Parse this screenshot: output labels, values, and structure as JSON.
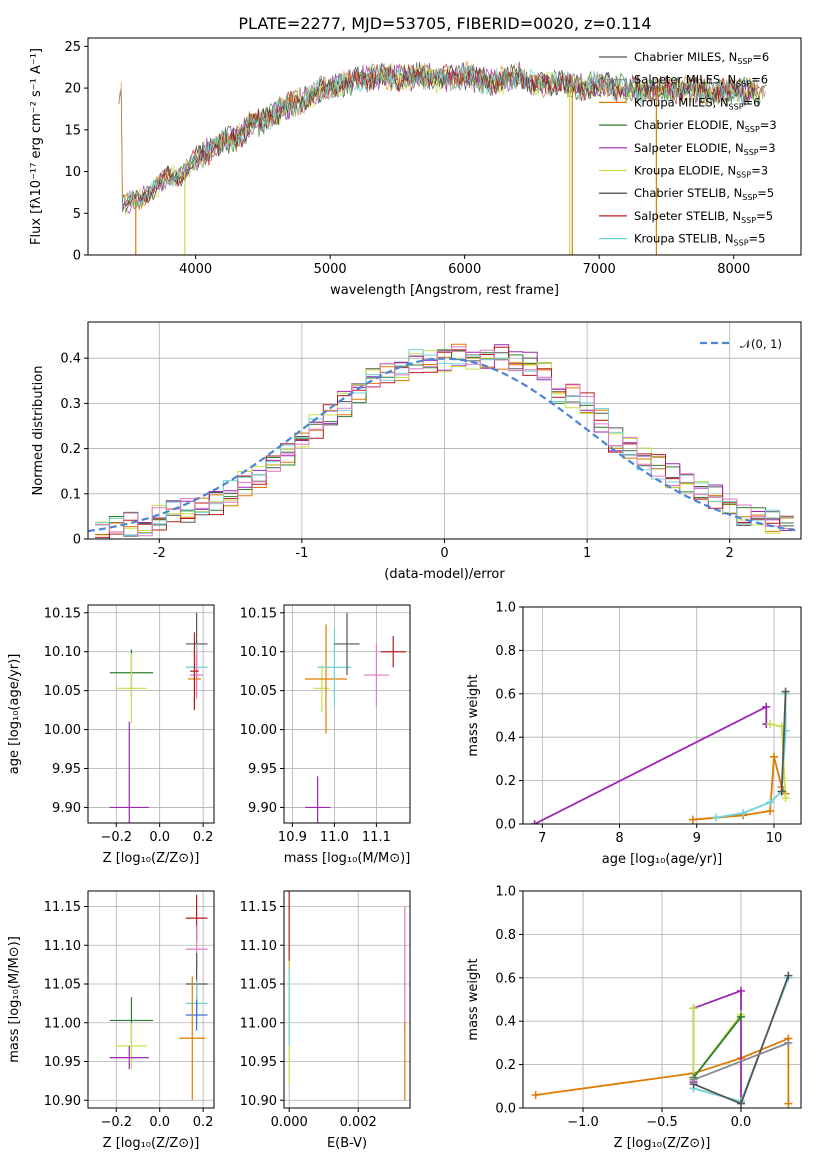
{
  "figure_title": "PLATE=2277, MJD=53705, FIBERID=0020, z=0.114",
  "chart_data": [
    {
      "id": "spectrum",
      "type": "line",
      "title": "PLATE=2277, MJD=53705, FIBERID=0020, z=0.114",
      "xlabel": "wavelength [Angstrom, rest frame]",
      "ylabel": "Flux [fλ10⁻¹⁷ erg cm⁻² s⁻¹ A⁻¹]",
      "xlim": [
        3200,
        8500
      ],
      "ylim": [
        0,
        26
      ],
      "xticks": [
        4000,
        5000,
        6000,
        7000,
        8000
      ],
      "yticks": [
        0,
        5,
        10,
        15,
        20,
        25
      ],
      "grid": false,
      "legend_position": "right",
      "data_trend": {
        "x": [
          3450,
          3500,
          3600,
          3700,
          3800,
          3900,
          4000,
          4100,
          4200,
          4300,
          4400,
          4500,
          4600,
          4700,
          4800,
          4900,
          5000,
          5100,
          5200,
          5300,
          5400,
          5500,
          5600,
          5700,
          5800,
          5900,
          6000,
          6100,
          6200,
          6300,
          6400,
          6500,
          6600,
          6700,
          6800,
          6900,
          7000,
          7100,
          7200,
          7300,
          7400,
          7500,
          7600,
          7700,
          7800,
          7900,
          8000,
          8100,
          8250
        ],
        "y": [
          6,
          6.3,
          6.8,
          8,
          9.5,
          9.5,
          11.5,
          12.5,
          13.5,
          14,
          15.5,
          16,
          17,
          18,
          18.5,
          19.5,
          20,
          20.5,
          21,
          21.2,
          21.5,
          21.3,
          21.2,
          21.5,
          21,
          21.2,
          21.5,
          21,
          20.8,
          21,
          21.5,
          20.5,
          20.5,
          20.8,
          20,
          20.2,
          20.5,
          20.2,
          20,
          19.8,
          20,
          19.8,
          19.8,
          19.7,
          19.6,
          19.6,
          19.8,
          19.5,
          19.5
        ]
      },
      "series": [
        {
          "name": "Chabrier MILES, N_SSP=6",
          "color": "#555555"
        },
        {
          "name": "Salpeter MILES, N_SSP=6",
          "color": "#888888"
        },
        {
          "name": "Kroupa MILES, N_SSP=6",
          "color": "#e07b00"
        },
        {
          "name": "Chabrier ELODIE, N_SSP=3",
          "color": "#2e7d32"
        },
        {
          "name": "Salpeter ELODIE, N_SSP=3",
          "color": "#9c27b0"
        },
        {
          "name": "Kroupa ELODIE, N_SSP=3",
          "color": "#c6e04a"
        },
        {
          "name": "Chabrier STELIB, N_SSP=5",
          "color": "#333333"
        },
        {
          "name": "Salpeter STELIB, N_SSP=5",
          "color": "#b71c1c"
        },
        {
          "name": "Kroupa STELIB, N_SSP=5",
          "color": "#6fd3d6"
        }
      ]
    },
    {
      "id": "residuals",
      "type": "bar",
      "xlabel": "(data-model)/error",
      "ylabel": "Normed distribution",
      "xlim": [
        -2.5,
        2.5
      ],
      "ylim": [
        0,
        0.48
      ],
      "xticks": [
        -2,
        -1,
        0,
        1,
        2
      ],
      "yticks": [
        0.0,
        0.1,
        0.2,
        0.3,
        0.4
      ],
      "grid": true,
      "legend_position": "upper right",
      "legend_label": "𝒩(0, 1)",
      "reference_curve": "gaussian N(0,1)",
      "hist_colors": [
        "#555555",
        "#e07b00",
        "#2e7d32",
        "#9c27b0",
        "#c6e04a",
        "#b71c1c",
        "#6fd3d6",
        "#e377c2"
      ],
      "bin_centers": [
        -2.4,
        -2.3,
        -2.2,
        -2.1,
        -2.0,
        -1.9,
        -1.8,
        -1.7,
        -1.6,
        -1.5,
        -1.4,
        -1.3,
        -1.2,
        -1.1,
        -1.0,
        -0.9,
        -0.8,
        -0.7,
        -0.6,
        -0.5,
        -0.4,
        -0.3,
        -0.2,
        -0.1,
        0.0,
        0.1,
        0.2,
        0.3,
        0.4,
        0.5,
        0.6,
        0.7,
        0.8,
        0.9,
        1.0,
        1.1,
        1.2,
        1.3,
        1.4,
        1.5,
        1.6,
        1.7,
        1.8,
        1.9,
        2.0,
        2.1,
        2.2,
        2.3,
        2.4
      ],
      "values_mean": [
        0.02,
        0.025,
        0.03,
        0.035,
        0.045,
        0.055,
        0.06,
        0.07,
        0.08,
        0.1,
        0.12,
        0.14,
        0.16,
        0.19,
        0.22,
        0.25,
        0.28,
        0.3,
        0.33,
        0.35,
        0.37,
        0.38,
        0.39,
        0.39,
        0.4,
        0.41,
        0.4,
        0.4,
        0.4,
        0.4,
        0.39,
        0.37,
        0.33,
        0.32,
        0.3,
        0.26,
        0.22,
        0.2,
        0.18,
        0.16,
        0.14,
        0.12,
        0.1,
        0.09,
        0.08,
        0.06,
        0.05,
        0.04,
        0.03
      ]
    },
    {
      "id": "age-vs-Z",
      "type": "scatter",
      "xlabel": "Z [log₁₀(Z/Z⊙)]",
      "ylabel": "age  [log₁₀(age/yr)]",
      "xlim": [
        -0.33,
        0.25
      ],
      "ylim": [
        9.88,
        10.16
      ],
      "xticks": [
        -0.2,
        0.0,
        0.2
      ],
      "xtick_labels": [
        "−0.2",
        "0.0",
        "0.2"
      ],
      "yticks": [
        9.9,
        9.95,
        10.0,
        10.05,
        10.1,
        10.15
      ],
      "ytick_labels": [
        "9.90",
        "9.95",
        "10.00",
        "10.05",
        "10.10",
        "10.15"
      ],
      "grid": true,
      "points": [
        {
          "x": -0.13,
          "y": 10.073,
          "xerr": 0.1,
          "yerr": 0.03,
          "color": "#2e7d32"
        },
        {
          "x": -0.13,
          "y": 10.053,
          "xerr": 0.07,
          "yerr": 0.045,
          "color": "#c6e04a"
        },
        {
          "x": -0.14,
          "y": 9.9,
          "xerr": 0.09,
          "yerr": 0.11,
          "color": "#9c27b0"
        },
        {
          "x": 0.17,
          "y": 10.11,
          "xerr": 0.05,
          "yerr": 0.04,
          "color": "#555555"
        },
        {
          "x": 0.17,
          "y": 10.08,
          "xerr": 0.05,
          "yerr": 0.03,
          "color": "#6fd3d6"
        },
        {
          "x": 0.17,
          "y": 10.07,
          "xerr": 0.03,
          "yerr": 0.03,
          "color": "#e377c2"
        },
        {
          "x": 0.16,
          "y": 10.065,
          "xerr": 0.03,
          "yerr": 0.04,
          "color": "#e07b00"
        },
        {
          "x": 0.16,
          "y": 10.075,
          "xerr": 0.02,
          "yerr": 0.05,
          "color": "#b71c1c"
        }
      ]
    },
    {
      "id": "age-vs-mass",
      "type": "scatter",
      "xlabel": "mass [log₁₀(M/M⊙)]",
      "ylabel": "",
      "xlim": [
        10.88,
        11.18
      ],
      "ylim": [
        9.88,
        10.16
      ],
      "xticks": [
        10.9,
        11.0,
        11.1
      ],
      "xtick_labels": [
        "10.9",
        "11.0",
        "11.1"
      ],
      "yticks": [
        9.9,
        9.95,
        10.0,
        10.05,
        10.1,
        10.15
      ],
      "ytick_labels": [
        "9.90",
        "9.95",
        "10.00",
        "10.05",
        "10.10",
        "10.15"
      ],
      "grid": true,
      "points": [
        {
          "x": 10.96,
          "y": 9.9,
          "xerr": 0.03,
          "yerr": 0.04,
          "color": "#9c27b0"
        },
        {
          "x": 10.97,
          "y": 10.053,
          "xerr": 0.02,
          "yerr": 0.03,
          "color": "#c6e04a"
        },
        {
          "x": 10.98,
          "y": 10.065,
          "xerr": 0.05,
          "yerr": 0.07,
          "color": "#e07b00"
        },
        {
          "x": 11.0,
          "y": 10.08,
          "xerr": 0.04,
          "yerr": 0.05,
          "color": "#6fd3d6"
        },
        {
          "x": 11.03,
          "y": 10.11,
          "xerr": 0.03,
          "yerr": 0.04,
          "color": "#555555"
        },
        {
          "x": 11.1,
          "y": 10.07,
          "xerr": 0.03,
          "yerr": 0.04,
          "color": "#e377c2"
        },
        {
          "x": 11.14,
          "y": 10.1,
          "xerr": 0.03,
          "yerr": 0.02,
          "color": "#b71c1c"
        }
      ]
    },
    {
      "id": "weight-vs-age",
      "type": "line",
      "xlabel": "age  [log₁₀(age/yr)]",
      "ylabel": "mass weight",
      "xlim": [
        6.75,
        10.35
      ],
      "ylim": [
        0,
        1
      ],
      "xticks": [
        7,
        8,
        9,
        10
      ],
      "yticks": [
        0.0,
        0.2,
        0.4,
        0.6,
        0.8,
        1.0
      ],
      "ytick_labels": [
        "0.0",
        "0.2",
        "0.4",
        "0.6",
        "0.8",
        "1.0"
      ],
      "grid": true,
      "series": [
        {
          "color": "#9c27b0",
          "x": [
            6.9,
            9.9,
            9.9
          ],
          "y": [
            0.0,
            0.54,
            0.46
          ]
        },
        {
          "color": "#e07b00",
          "x": [
            8.95,
            9.6,
            9.95,
            10.0,
            10.1,
            10.15
          ],
          "y": [
            0.02,
            0.04,
            0.06,
            0.31,
            0.17,
            0.14
          ]
        },
        {
          "color": "#6fd3d6",
          "x": [
            9.25,
            9.6,
            9.95,
            10.1,
            10.15,
            10.15
          ],
          "y": [
            0.03,
            0.05,
            0.1,
            0.15,
            0.43,
            0.6
          ]
        },
        {
          "color": "#c6e04a",
          "x": [
            9.95,
            10.1,
            10.15
          ],
          "y": [
            0.46,
            0.45,
            0.12
          ]
        },
        {
          "color": "#555555",
          "x": [
            10.1,
            10.15
          ],
          "y": [
            0.15,
            0.61
          ]
        }
      ]
    },
    {
      "id": "mass-vs-Z",
      "type": "scatter",
      "xlabel": "Z [log₁₀(Z/Z⊙)]",
      "ylabel": "mass [log₁₀(M/M⊙)]",
      "xlim": [
        -0.33,
        0.25
      ],
      "ylim": [
        10.89,
        11.17
      ],
      "xticks": [
        -0.2,
        0.0,
        0.2
      ],
      "xtick_labels": [
        "−0.2",
        "0.0",
        "0.2"
      ],
      "yticks": [
        10.9,
        10.95,
        11.0,
        11.05,
        11.1,
        11.15
      ],
      "ytick_labels": [
        "10.90",
        "10.95",
        "11.00",
        "11.05",
        "11.10",
        "11.15"
      ],
      "grid": true,
      "points": [
        {
          "x": -0.13,
          "y": 11.003,
          "xerr": 0.1,
          "yerr": 0.03,
          "color": "#2e7d32"
        },
        {
          "x": -0.13,
          "y": 10.97,
          "xerr": 0.07,
          "yerr": 0.03,
          "color": "#c6e04a"
        },
        {
          "x": -0.14,
          "y": 10.955,
          "xerr": 0.09,
          "yerr": 0.015,
          "color": "#9c27b0"
        },
        {
          "x": 0.17,
          "y": 11.135,
          "xerr": 0.05,
          "yerr": 0.03,
          "color": "#b71c1c"
        },
        {
          "x": 0.17,
          "y": 11.095,
          "xerr": 0.05,
          "yerr": 0.03,
          "color": "#e377c2"
        },
        {
          "x": 0.17,
          "y": 11.05,
          "xerr": 0.05,
          "yerr": 0.04,
          "color": "#555555"
        },
        {
          "x": 0.17,
          "y": 11.025,
          "xerr": 0.05,
          "yerr": 0.03,
          "color": "#6fd3d6"
        },
        {
          "x": 0.17,
          "y": 11.01,
          "xerr": 0.05,
          "yerr": 0.02,
          "color": "#3b6fd6"
        },
        {
          "x": 0.15,
          "y": 10.98,
          "xerr": 0.06,
          "yerr": 0.08,
          "color": "#e07b00"
        }
      ]
    },
    {
      "id": "mass-vs-EBV",
      "type": "scatter",
      "xlabel": "E(B-V)",
      "ylabel": "",
      "xlim": [
        -0.00015,
        0.0035
      ],
      "ylim": [
        10.89,
        11.17
      ],
      "xticks": [
        0.0,
        0.002
      ],
      "xtick_labels": [
        "0.000",
        "0.002"
      ],
      "yticks": [
        10.9,
        10.95,
        11.0,
        11.05,
        11.1,
        11.15
      ],
      "ytick_labels": [
        "10.90",
        "10.95",
        "11.00",
        "11.05",
        "11.10",
        "11.15"
      ],
      "grid": true,
      "points": [
        {
          "x": 0.0,
          "y": 11.12,
          "xerr": 0,
          "yerr": 0.05,
          "color": "#b71c1c"
        },
        {
          "x": 0.0,
          "y": 11.0,
          "xerr": 0,
          "yerr": 0.08,
          "color": "#c6e04a"
        },
        {
          "x": 0.0,
          "y": 11.02,
          "xerr": 0,
          "yerr": 0.05,
          "color": "#6fd3d6"
        },
        {
          "x": 0.00335,
          "y": 11.07,
          "xerr": 0,
          "yerr": 0.08,
          "color": "#e377c2"
        },
        {
          "x": 0.00335,
          "y": 10.95,
          "xerr": 0,
          "yerr": 0.05,
          "color": "#e07b00"
        }
      ]
    },
    {
      "id": "weight-vs-Z",
      "type": "line",
      "xlabel": "Z [log₁₀(Z/Z⊙)]",
      "ylabel": "mass weight",
      "xlim": [
        -1.38,
        0.38
      ],
      "ylim": [
        0,
        1
      ],
      "xticks": [
        -1.0,
        -0.5,
        0.0
      ],
      "xtick_labels": [
        "−1.0",
        "−0.5",
        "0.0"
      ],
      "yticks": [
        0.0,
        0.2,
        0.4,
        0.6,
        0.8,
        1.0
      ],
      "ytick_labels": [
        "0.0",
        "0.2",
        "0.4",
        "0.6",
        "0.8",
        "1.0"
      ],
      "grid": true,
      "series": [
        {
          "color": "#e07b00",
          "x": [
            -1.3,
            -0.3,
            0.0,
            0.3,
            0.3
          ],
          "y": [
            0.06,
            0.16,
            0.23,
            0.32,
            0.02
          ]
        },
        {
          "color": "#9c27b0",
          "x": [
            -0.3,
            -0.3,
            0.0,
            0.0
          ],
          "y": [
            0.12,
            0.46,
            0.54,
            0.03
          ]
        },
        {
          "color": "#c6e04a",
          "x": [
            -0.3,
            -0.3,
            0.0
          ],
          "y": [
            0.46,
            0.14,
            0.43
          ]
        },
        {
          "color": "#2e7d32",
          "x": [
            -0.3,
            0.0
          ],
          "y": [
            0.14,
            0.42
          ]
        },
        {
          "color": "#6fd3d6",
          "x": [
            -0.3,
            0.0,
            0.3
          ],
          "y": [
            0.09,
            0.03,
            0.6
          ]
        },
        {
          "color": "#555555",
          "x": [
            -0.3,
            0.0,
            0.3
          ],
          "y": [
            0.11,
            0.02,
            0.61
          ]
        },
        {
          "color": "#888888",
          "x": [
            -0.3,
            0.3
          ],
          "y": [
            0.13,
            0.3
          ]
        }
      ]
    }
  ]
}
